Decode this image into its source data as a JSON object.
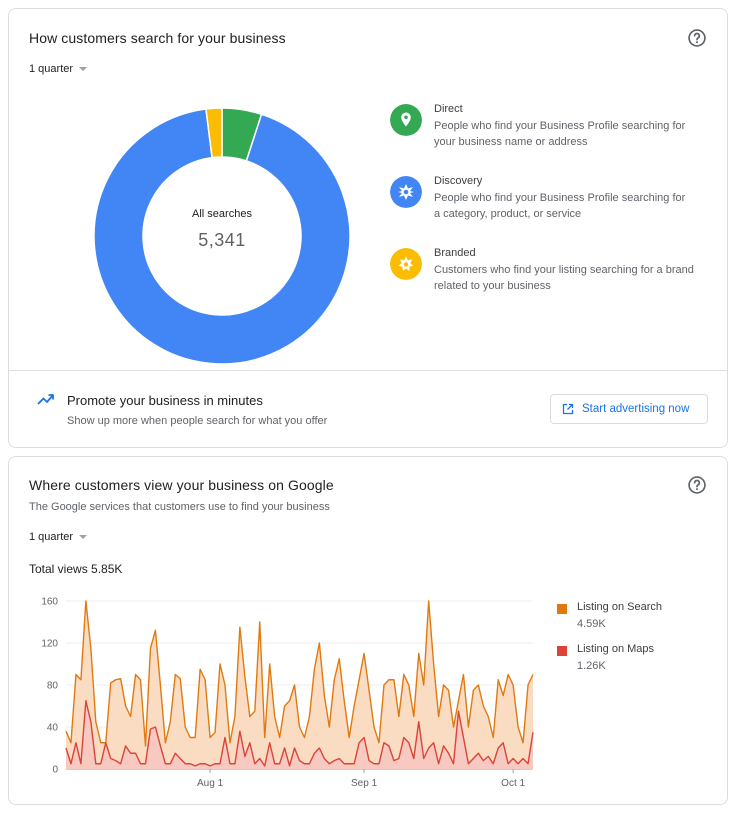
{
  "search_card": {
    "title": "How customers search for your business",
    "period": "1 quarter",
    "help_icon": "help-circle-icon",
    "total_caption": "All searches",
    "total_value": "5,341",
    "segments": [
      {
        "name": "Direct",
        "percent": 5,
        "color": "#34a853"
      },
      {
        "name": "Discovery",
        "percent": 93,
        "color": "#4285f4"
      },
      {
        "name": "Branded",
        "percent": 2,
        "color": "#fbbc04"
      }
    ],
    "legend": [
      {
        "title": "Direct",
        "description": "People who find your Business Profile searching for your business name or address",
        "icon": "location-pin-icon",
        "color": "#34a853"
      },
      {
        "title": "Discovery",
        "description": "People who find your Business Profile searching for a category, product, or service",
        "icon": "discovery-icon",
        "color": "#4285f4"
      },
      {
        "title": "Branded",
        "description": "Customers who find your listing searching for a brand related to your business",
        "icon": "branded-icon",
        "color": "#fbbc04"
      }
    ]
  },
  "promo": {
    "icon": "trending-up-icon",
    "title": "Promote your business in minutes",
    "subtitle": "Show up more when people search for what you offer",
    "button_label": "Start advertising now",
    "button_icon": "open-in-new-icon"
  },
  "views_card": {
    "title": "Where customers view your business on Google",
    "subtitle": "The Google services that customers use to find your business",
    "period": "1 quarter",
    "total_label": "Total views 5.85K",
    "series_legend": [
      {
        "name": "Listing on Search",
        "value": "4.59K",
        "color": "#e07a10"
      },
      {
        "name": "Listing on Maps",
        "value": "1.26K",
        "color": "#db4437"
      }
    ]
  },
  "chart_data": {
    "type": "area",
    "title": "",
    "xlabel": "",
    "ylabel": "",
    "ylim": [
      0,
      160
    ],
    "y_ticks": [
      "0",
      "40",
      "80",
      "120",
      "160"
    ],
    "x_ticks": [
      {
        "label": "Aug 1",
        "index": 29
      },
      {
        "label": "Sep 1",
        "index": 60
      },
      {
        "label": "Oct 1",
        "index": 90
      }
    ],
    "grid": true,
    "stacked": false,
    "series": [
      {
        "name": "Listing on Search",
        "color": "#e07a10",
        "values": [
          36,
          25,
          90,
          85,
          160,
          115,
          45,
          25,
          25,
          82,
          85,
          86,
          60,
          50,
          90,
          85,
          22,
          115,
          132,
          80,
          25,
          45,
          90,
          86,
          40,
          30,
          30,
          95,
          85,
          30,
          35,
          100,
          80,
          25,
          50,
          135,
          88,
          50,
          55,
          140,
          30,
          100,
          50,
          30,
          60,
          65,
          80,
          40,
          30,
          50,
          95,
          120,
          70,
          40,
          85,
          105,
          65,
          30,
          60,
          85,
          110,
          75,
          40,
          25,
          80,
          85,
          85,
          50,
          90,
          80,
          50,
          110,
          80,
          160,
          100,
          50,
          80,
          75,
          40,
          65,
          90,
          40,
          75,
          80,
          60,
          50,
          30,
          85,
          70,
          90,
          80,
          40,
          25,
          80,
          90
        ]
      },
      {
        "name": "Listing on Maps",
        "color": "#db4437",
        "values": [
          20,
          5,
          25,
          5,
          65,
          45,
          5,
          5,
          25,
          10,
          8,
          5,
          22,
          15,
          15,
          5,
          5,
          38,
          40,
          22,
          5,
          5,
          15,
          10,
          5,
          5,
          3,
          5,
          5,
          3,
          5,
          5,
          30,
          5,
          5,
          36,
          12,
          25,
          5,
          10,
          3,
          25,
          5,
          5,
          20,
          3,
          20,
          8,
          5,
          5,
          15,
          20,
          10,
          5,
          8,
          10,
          5,
          5,
          5,
          25,
          30,
          8,
          5,
          5,
          25,
          22,
          8,
          10,
          30,
          25,
          10,
          45,
          10,
          20,
          25,
          5,
          22,
          15,
          5,
          55,
          30,
          5,
          10,
          15,
          8,
          12,
          5,
          20,
          25,
          5,
          10,
          5,
          10,
          5,
          35
        ]
      }
    ]
  }
}
